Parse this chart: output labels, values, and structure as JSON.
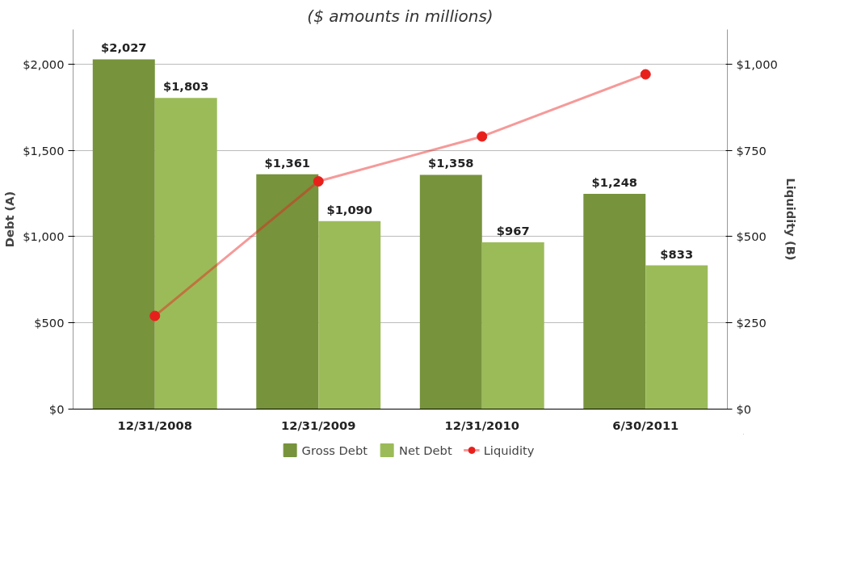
{
  "chart_data": {
    "type": "bar",
    "title": "($ amounts in millions)",
    "ylabel": "Debt (A)",
    "y2label": "Liquidity (B)",
    "categories": [
      "12/31/2008",
      "12/31/2009",
      "12/31/2010",
      "6/30/2011"
    ],
    "series": [
      {
        "name": "Gross Debt",
        "color": "#77933c",
        "values": [
          2027,
          1361,
          1358,
          1248
        ],
        "value_labels": [
          "$2,027",
          "$1,361",
          "$1,358",
          "$1,248"
        ]
      },
      {
        "name": "Net Debt",
        "color": "#9bbb59",
        "values": [
          1803,
          1090,
          967,
          833
        ],
        "value_labels": [
          "$1,803",
          "$1,090",
          "$967",
          "$833"
        ]
      },
      {
        "name": "Liquidity",
        "type": "line",
        "axis": "y2",
        "color": "#e8201c",
        "marker": "circle",
        "values": [
          270,
          660,
          790,
          970
        ]
      }
    ],
    "ylim": [
      0,
      2200
    ],
    "yticks": [
      {
        "value": 0,
        "label": "$0"
      },
      {
        "value": 500,
        "label": "$500"
      },
      {
        "value": 1000,
        "label": "$1,000"
      },
      {
        "value": 1500,
        "label": "$1,500"
      },
      {
        "value": 2000,
        "label": "$2,000"
      }
    ],
    "y2lim": [
      0,
      1100
    ],
    "y2ticks": [
      {
        "value": 0,
        "label": "$0"
      },
      {
        "value": 250,
        "label": "$250"
      },
      {
        "value": 500,
        "label": "$500"
      },
      {
        "value": 750,
        "label": "$750"
      },
      {
        "value": 1000,
        "label": "$1,000"
      }
    ],
    "grid": "y",
    "legend": "bottom"
  }
}
